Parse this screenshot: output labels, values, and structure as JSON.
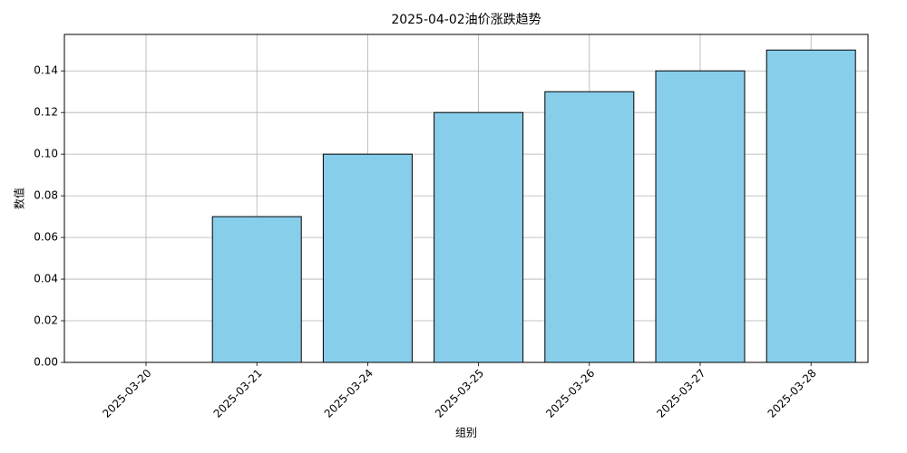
{
  "chart_data": {
    "type": "bar",
    "title": "2025-04-02油价涨跌趋势",
    "x_label": "组别",
    "y_label": "数值",
    "categories": [
      "2025-03-20",
      "2025-03-21",
      "2025-03-24",
      "2025-03-25",
      "2025-03-26",
      "2025-03-27",
      "2025-03-28"
    ],
    "values": [
      0,
      0.07,
      0.1,
      0.12,
      0.13,
      0.14,
      0.15
    ],
    "color": "#87ceeb",
    "edge_color": "#000000",
    "ylim": [
      0,
      0.1575
    ],
    "yticks": [
      {
        "value": 0,
        "label": "0.00"
      },
      {
        "value": 0.02,
        "label": "0.02"
      },
      {
        "value": 0.04,
        "label": "0.04"
      },
      {
        "value": 0.06,
        "label": "0.06"
      },
      {
        "value": 0.08,
        "label": "0.08"
      },
      {
        "value": 0.1,
        "label": "0.10"
      },
      {
        "value": 0.12,
        "label": "0.12"
      },
      {
        "value": 0.14,
        "label": "0.14"
      }
    ],
    "grid": true
  }
}
